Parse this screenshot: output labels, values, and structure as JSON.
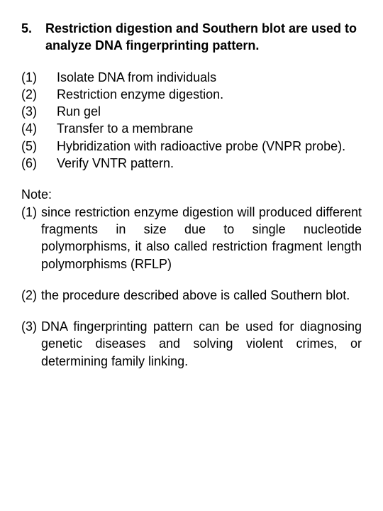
{
  "heading": {
    "number": "5.",
    "text": "Restriction digestion and Southern blot are used to analyze DNA fingerprinting pattern."
  },
  "steps": [
    {
      "label": "(1)",
      "text": "Isolate DNA from individuals"
    },
    {
      "label": "(2)",
      "text": "Restriction enzyme digestion."
    },
    {
      "label": "(3)",
      "text": "Run gel"
    },
    {
      "label": "(4)",
      "text": "Transfer to a membrane"
    },
    {
      "label": "(5)",
      "text": "Hybridization with radioactive probe (VNPR probe)."
    },
    {
      "label": "(6)",
      "text": "Verify VNTR pattern."
    }
  ],
  "noteLabel": "Note:",
  "notes": [
    {
      "label": "(1)",
      "text": "since restriction enzyme digestion will produced different fragments in size due to single nucleotide polymorphisms, it also called restriction fragment length polymorphisms (RFLP)"
    },
    {
      "label": "(2)",
      "text": "the procedure described above is called Southern blot."
    },
    {
      "label": "(3)",
      "text": "DNA fingerprinting pattern can be used for diagnosing genetic diseases and solving violent crimes, or determining family linking."
    }
  ]
}
